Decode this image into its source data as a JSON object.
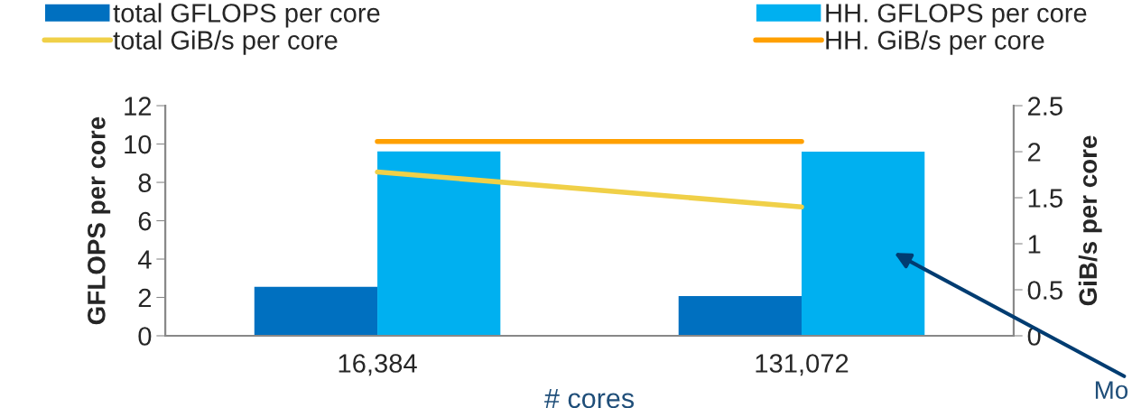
{
  "chart_data": {
    "type": "bar",
    "categories": [
      "16,384",
      "131,072"
    ],
    "series": [
      {
        "name": "total GFLOPS per core",
        "color": "#0070c0",
        "values": [
          2.55,
          2.07
        ]
      },
      {
        "name": "HH. GFLOPS per core",
        "color": "#00b0f0",
        "values": [
          9.62,
          9.6
        ]
      },
      {
        "name": "total GiB/s per core",
        "type": "line",
        "axis": "y2",
        "color": "#f0d048",
        "values": [
          1.78,
          1.4
        ]
      },
      {
        "name": "HH. GiB/s per core",
        "type": "line",
        "axis": "y2",
        "color": "#ffa000",
        "values": [
          2.11,
          2.11
        ]
      }
    ],
    "ylim": [
      0,
      12
    ],
    "yticks": [
      0,
      2,
      4,
      6,
      8,
      10,
      12
    ],
    "y2lim": [
      0,
      2.5
    ],
    "y2ticks": [
      0,
      0.5,
      1,
      1.5,
      2,
      2.5
    ],
    "xlabel": "# cores",
    "ylabel": "GFLOPS per core",
    "y2label": "GiB/s per core",
    "legend": "top",
    "grid": false,
    "annotations": [
      "Mo"
    ]
  }
}
